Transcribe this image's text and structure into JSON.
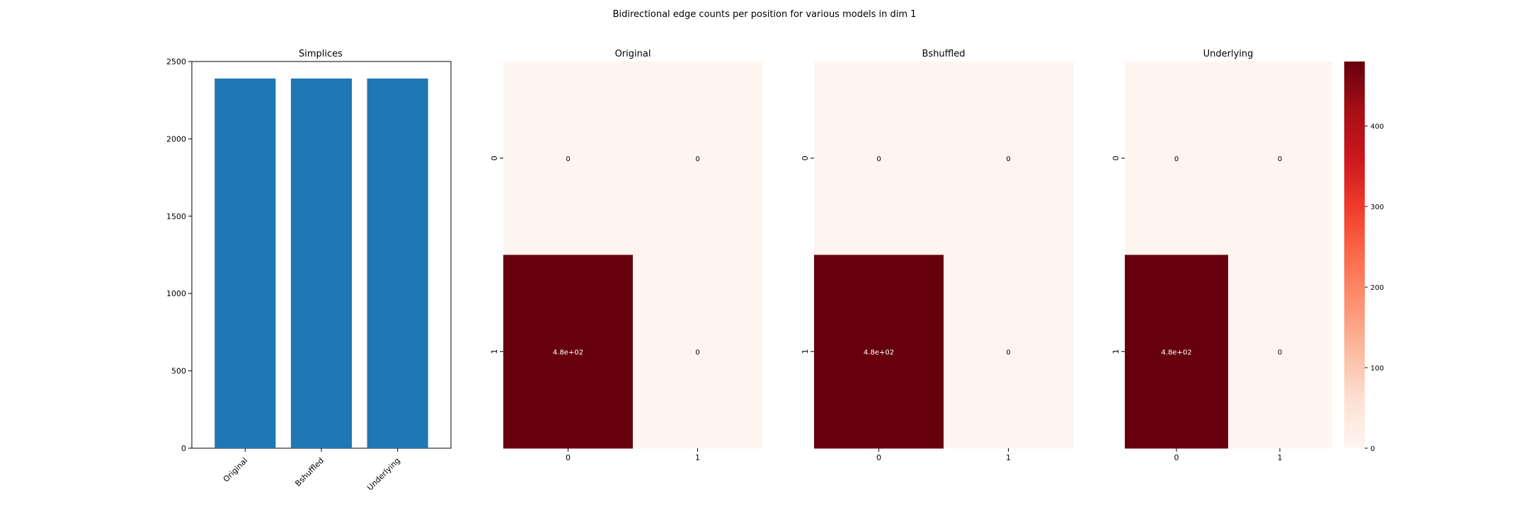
{
  "figure": {
    "title": "Bidirectional edge counts per position for various models in dim 1"
  },
  "colors": {
    "bar": "#1f77b4",
    "heat_low": "#fff5f0",
    "heat_high": "#67000d"
  },
  "chart_data": [
    {
      "type": "bar",
      "title": "Simplices",
      "categories": [
        "Original",
        "Bshuffled",
        "Underlying"
      ],
      "values": [
        2390,
        2390,
        2390
      ],
      "ylim": [
        0,
        2500
      ],
      "yticks": [
        0,
        500,
        1000,
        1500,
        2000,
        2500
      ],
      "xlabel": "",
      "ylabel": "",
      "grid": false
    },
    {
      "type": "heatmap",
      "title": "Original",
      "x_labels": [
        "0",
        "1"
      ],
      "y_labels": [
        "0",
        "1"
      ],
      "values": [
        [
          0,
          0
        ],
        [
          480,
          0
        ]
      ],
      "annotations": [
        [
          "0",
          "0"
        ],
        [
          "4.8e+02",
          "0"
        ]
      ],
      "col_widths": [
        1,
        1
      ]
    },
    {
      "type": "heatmap",
      "title": "Bshuffled",
      "x_labels": [
        "0",
        "1"
      ],
      "y_labels": [
        "0",
        "1"
      ],
      "values": [
        [
          0,
          0
        ],
        [
          480,
          0
        ]
      ],
      "annotations": [
        [
          "0",
          "0"
        ],
        [
          "4.8e+02",
          "0"
        ]
      ],
      "col_widths": [
        1,
        1
      ]
    },
    {
      "type": "heatmap",
      "title": "Underlying",
      "x_labels": [
        "0",
        "1"
      ],
      "y_labels": [
        "0",
        "1"
      ],
      "values": [
        [
          0,
          0
        ],
        [
          480,
          0
        ]
      ],
      "annotations": [
        [
          "0",
          "0"
        ],
        [
          "4.8e+02",
          "0"
        ]
      ],
      "col_widths": [
        1,
        1
      ]
    }
  ],
  "colorbar": {
    "range": [
      0,
      480
    ],
    "ticks": [
      0,
      100,
      200,
      300,
      400
    ]
  }
}
